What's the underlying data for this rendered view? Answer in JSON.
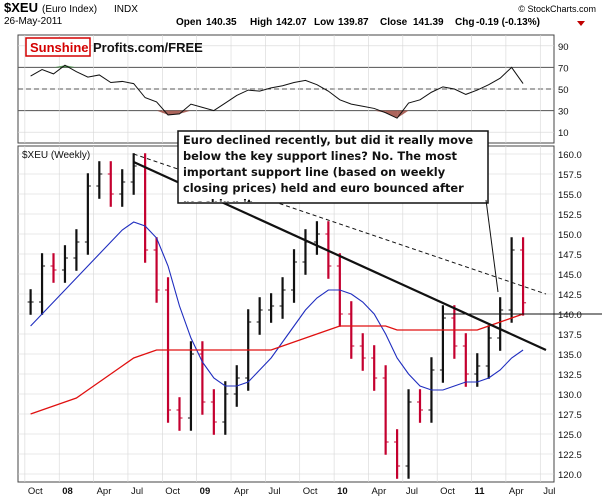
{
  "header": {
    "symbol": "$XEU",
    "name": "(Euro Index)",
    "exchange": "INDX",
    "date": "26-May-2011",
    "watermark": "© StockCharts.com",
    "open_label": "Open",
    "open": "140.35",
    "high_label": "High",
    "high": "142.07",
    "low_label": "Low",
    "low": "139.87",
    "close_label": "Close",
    "close": "141.39",
    "chg_label": "Chg",
    "chg": "-0.19 (-0.13%)"
  },
  "logo": {
    "part1": "Sunshine",
    "part2": "Profits.com/FREE"
  },
  "annotation": "Euro declined recently, but did it really move below the key support lines? No. The most important support line (based on weekly closing prices) held and euro bounced after reaching it.",
  "colors": {
    "price_bar": "#c4002f",
    "price_bar_dark": "#111111",
    "ma_short": "#1f2dbf",
    "ma_long": "#e01010",
    "rsi_line": "#111111",
    "rsi_overbought_fill": "#3a8a3a",
    "rsi_oversold_fill": "#9e4a40",
    "logo_red": "#d40000",
    "chg_red": "#c00000",
    "grid": "#d6d6d6"
  },
  "chart_data": [
    {
      "type": "line",
      "panel": "rsi",
      "ylim": [
        0,
        100
      ],
      "ytick_labels": [
        "10",
        "30",
        "50",
        "70",
        "90"
      ],
      "reference_lines": [
        30,
        50,
        70
      ],
      "x": [
        "2007-10",
        "2007-11",
        "2007-12",
        "2008-01",
        "2008-02",
        "2008-03",
        "2008-04",
        "2008-05",
        "2008-06",
        "2008-07",
        "2008-08",
        "2008-09",
        "2008-10",
        "2008-11",
        "2008-12",
        "2009-01",
        "2009-02",
        "2009-03",
        "2009-04",
        "2009-05",
        "2009-06",
        "2009-07",
        "2009-08",
        "2009-09",
        "2009-10",
        "2009-11",
        "2009-12",
        "2010-01",
        "2010-02",
        "2010-03",
        "2010-04",
        "2010-05",
        "2010-06",
        "2010-07",
        "2010-08",
        "2010-09",
        "2010-10",
        "2010-11",
        "2010-12",
        "2011-01",
        "2011-02",
        "2011-03",
        "2011-04",
        "2011-05"
      ],
      "values": [
        62,
        68,
        64,
        72,
        66,
        61,
        63,
        56,
        57,
        55,
        42,
        38,
        26,
        27,
        36,
        33,
        30,
        37,
        44,
        49,
        48,
        51,
        53,
        56,
        58,
        54,
        48,
        40,
        36,
        34,
        32,
        28,
        23,
        37,
        40,
        47,
        52,
        50,
        45,
        49,
        54,
        60,
        70,
        55
      ]
    },
    {
      "type": "line",
      "panel": "price",
      "title": "$XEU (Weekly)",
      "ylim": [
        119,
        161
      ],
      "ytick_labels": [
        "120.0",
        "122.5",
        "125.0",
        "127.5",
        "130.0",
        "132.5",
        "135.0",
        "137.5",
        "140.0",
        "142.5",
        "145.0",
        "147.5",
        "150.0",
        "152.5",
        "155.0",
        "157.5",
        "160.0"
      ],
      "xtick_labels": [
        "Oct",
        "08",
        "Apr",
        "Jul",
        "Oct",
        "09",
        "Apr",
        "Jul",
        "Oct",
        "10",
        "Apr",
        "Jul",
        "Oct",
        "11",
        "Apr",
        "Jul"
      ],
      "x": [
        "2007-10",
        "2007-11",
        "2007-12",
        "2008-01",
        "2008-02",
        "2008-03",
        "2008-04",
        "2008-05",
        "2008-06",
        "2008-07",
        "2008-08",
        "2008-09",
        "2008-10",
        "2008-11",
        "2008-12",
        "2009-01",
        "2009-02",
        "2009-03",
        "2009-04",
        "2009-05",
        "2009-06",
        "2009-07",
        "2009-08",
        "2009-09",
        "2009-10",
        "2009-11",
        "2009-12",
        "2010-01",
        "2010-02",
        "2010-03",
        "2010-04",
        "2010-05",
        "2010-06",
        "2010-07",
        "2010-08",
        "2010-09",
        "2010-10",
        "2010-11",
        "2010-12",
        "2011-01",
        "2011-02",
        "2011-03",
        "2011-04",
        "2011-05"
      ],
      "series": [
        {
          "name": "price",
          "values": [
            141.5,
            146.0,
            145.5,
            147.0,
            149.0,
            156.0,
            157.5,
            155.0,
            156.5,
            158.5,
            148.0,
            143.0,
            128.0,
            127.0,
            135.0,
            129.0,
            126.5,
            130.0,
            132.0,
            139.0,
            140.5,
            141.0,
            143.0,
            146.5,
            149.0,
            150.0,
            146.0,
            140.0,
            136.0,
            134.5,
            132.0,
            124.0,
            121.0,
            129.0,
            128.0,
            133.0,
            139.5,
            136.0,
            132.5,
            133.5,
            137.0,
            140.5,
            148.0,
            141.4
          ]
        },
        {
          "name": "short_ma",
          "values": [
            138.5,
            140.0,
            141.5,
            143.0,
            144.5,
            146.0,
            147.5,
            149.0,
            150.5,
            151.5,
            151.0,
            149.5,
            146.0,
            141.0,
            137.0,
            134.0,
            132.0,
            131.0,
            131.0,
            131.5,
            133.0,
            134.5,
            136.5,
            138.5,
            140.5,
            142.0,
            143.0,
            143.0,
            142.5,
            141.5,
            140.0,
            137.5,
            134.5,
            132.5,
            131.0,
            130.5,
            130.5,
            131.0,
            131.5,
            131.5,
            132.0,
            133.0,
            134.5,
            135.5
          ]
        },
        {
          "name": "long_ma",
          "values": [
            127.5,
            128.0,
            128.5,
            129.0,
            129.5,
            130.5,
            131.5,
            132.5,
            133.5,
            134.5,
            135.0,
            135.5,
            135.5,
            135.5,
            135.5,
            135.5,
            135.5,
            135.5,
            135.5,
            135.5,
            135.5,
            135.5,
            136.0,
            136.5,
            137.0,
            137.5,
            138.0,
            138.5,
            138.5,
            138.5,
            138.5,
            138.5,
            138.0,
            138.0,
            138.0,
            138.0,
            138.0,
            138.0,
            138.0,
            138.0,
            138.5,
            139.0,
            139.5,
            140.0
          ]
        }
      ],
      "trendlines": [
        {
          "style": "solid",
          "from": [
            "2008-07",
            159.0
          ],
          "to": [
            "2011-07",
            135.5
          ]
        },
        {
          "style": "dashed",
          "from": [
            "2008-07",
            160.0
          ],
          "to": [
            "2011-07",
            142.5
          ]
        }
      ],
      "horizontal_line": 140.0
    }
  ]
}
